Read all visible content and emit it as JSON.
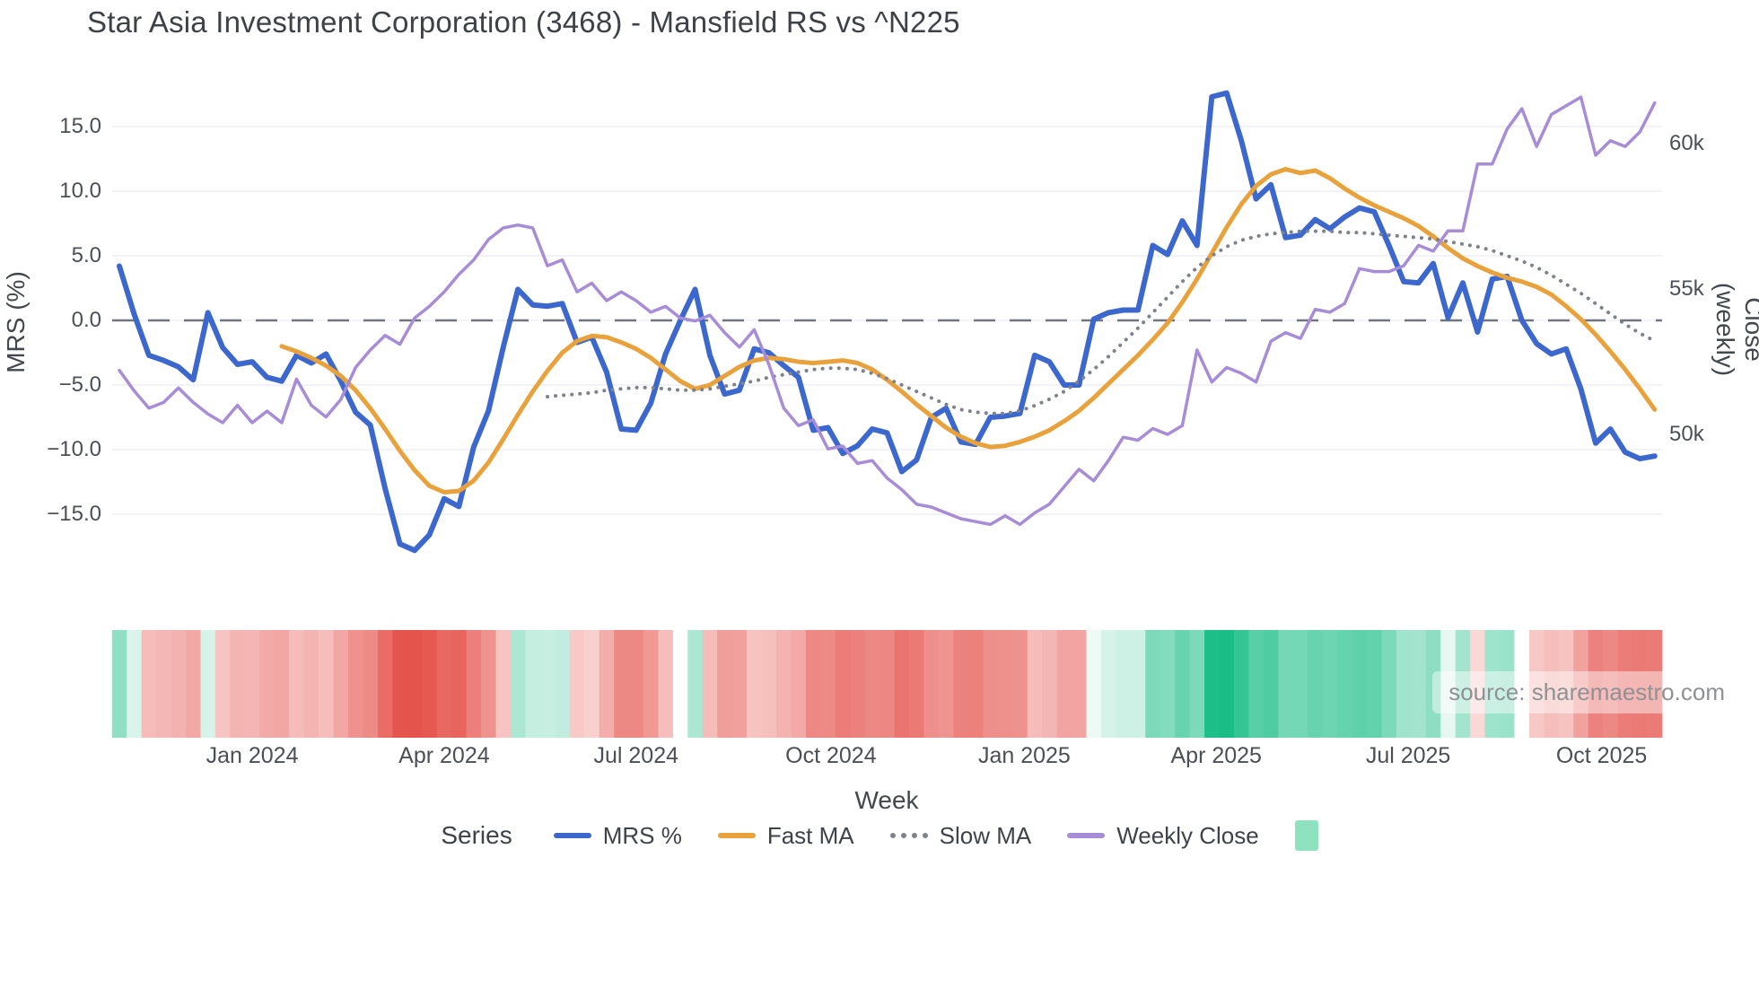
{
  "title": "Star Asia Investment Corporation (3468) - Mansfield RS vs ^N225",
  "source_watermark": "source: sharemaestro.com",
  "axes": {
    "left": {
      "title": "MRS (%)",
      "ticks": [
        "15.0",
        "10.0",
        "5.0",
        "0.0",
        "−5.0",
        "−10.0",
        "−15.0"
      ]
    },
    "right": {
      "title": "Close (weekly)",
      "ticks": [
        "60k",
        "55k",
        "50k"
      ]
    },
    "x": {
      "title": "Week",
      "ticks": [
        "Jan 2024",
        "Apr 2024",
        "Jul 2024",
        "Oct 2024",
        "Jan 2025",
        "Apr 2025",
        "Jul 2025",
        "Oct 2025"
      ]
    }
  },
  "legend": {
    "title": "Series",
    "items": [
      {
        "label": "MRS %",
        "color": "#3c68ce",
        "style": "solid"
      },
      {
        "label": "Fast MA",
        "color": "#e9a23b",
        "style": "solid"
      },
      {
        "label": "Slow MA",
        "color": "#7d828c",
        "style": "dotted"
      },
      {
        "label": "Weekly Close",
        "color": "#a78cd7",
        "style": "solid"
      }
    ],
    "heatmap_swatch_color": "#8fe2c0"
  },
  "colors": {
    "background": "#ffffff",
    "grid": "#ededf6",
    "zero_line": "#70757f",
    "title_text": "#3d4148",
    "tick_text": "#4b4f56"
  },
  "chart_data": {
    "type": "line",
    "title": "Star Asia Investment Corporation (3468) - Mansfield RS vs ^N225",
    "xlabel": "Week",
    "ylabel_left": "MRS (%)",
    "ylabel_right": "Close (weekly)",
    "x_unit": "week",
    "x_tick_labels": [
      "Jan 2024",
      "Apr 2024",
      "Jul 2024",
      "Oct 2024",
      "Jan 2025",
      "Apr 2025",
      "Jul 2025",
      "Oct 2025"
    ],
    "y_left_ticks": [
      15,
      10,
      5,
      0,
      -5,
      -10,
      -15
    ],
    "y_left_range": [
      -20.5,
      19.9
    ],
    "y_right_ticks_thousands": [
      60,
      55,
      50
    ],
    "grid": true,
    "legend_position": "bottom",
    "series": [
      {
        "name": "MRS %",
        "axis": "left",
        "color": "#3c68ce",
        "width": 6,
        "style": "solid",
        "values": [
          4.2,
          0.5,
          -2.7,
          -3.1,
          -3.6,
          -4.6,
          0.6,
          -2.1,
          -3.4,
          -3.2,
          -4.4,
          -4.7,
          -2.7,
          -3.3,
          -2.6,
          -4.7,
          -7.1,
          -8.1,
          -13.0,
          -17.3,
          -17.8,
          -16.6,
          -13.8,
          -14.4,
          -9.8,
          -7.0,
          -2.1,
          2.4,
          1.2,
          1.1,
          1.3,
          -1.7,
          -1.3,
          -4.0,
          -8.4,
          -8.5,
          -6.4,
          -2.6,
          0.0,
          2.4,
          -2.7,
          -5.7,
          -5.4,
          -2.2,
          -2.5,
          -3.5,
          -4.4,
          -8.5,
          -8.3,
          -10.3,
          -9.7,
          -8.4,
          -8.7,
          -11.7,
          -10.8,
          -7.5,
          -6.8,
          -9.4,
          -9.6,
          -7.5,
          -7.4,
          -7.2,
          -2.7,
          -3.2,
          -5.0,
          -5.0,
          0.1,
          0.6,
          0.8,
          0.8,
          5.8,
          5.1,
          7.7,
          5.8,
          17.3,
          17.6,
          13.9,
          9.4,
          10.5,
          6.4,
          6.6,
          7.8,
          7.1,
          8.0,
          8.7,
          8.4,
          5.8,
          3.0,
          2.9,
          4.4,
          0.2,
          2.9,
          -0.9,
          3.2,
          3.4,
          0.0,
          -1.8,
          -2.6,
          -2.2,
          -5.3,
          -9.5,
          -8.4,
          -10.2,
          -10.7,
          -10.5
        ]
      },
      {
        "name": "Fast MA",
        "axis": "left",
        "color": "#e9a23b",
        "width": 5,
        "style": "solid",
        "values": [
          null,
          null,
          null,
          null,
          null,
          null,
          null,
          null,
          null,
          null,
          null,
          -2.0,
          -2.4,
          -2.9,
          -3.5,
          -4.3,
          -5.4,
          -6.8,
          -8.4,
          -10.1,
          -11.6,
          -12.8,
          -13.3,
          -13.2,
          -12.4,
          -11.0,
          -9.2,
          -7.3,
          -5.5,
          -3.9,
          -2.5,
          -1.6,
          -1.2,
          -1.3,
          -1.7,
          -2.2,
          -2.9,
          -3.8,
          -4.7,
          -5.3,
          -5.0,
          -4.3,
          -3.6,
          -3.1,
          -2.9,
          -3.0,
          -3.2,
          -3.3,
          -3.2,
          -3.1,
          -3.3,
          -3.8,
          -4.6,
          -5.5,
          -6.5,
          -7.4,
          -8.3,
          -9.0,
          -9.5,
          -9.8,
          -9.7,
          -9.4,
          -9.0,
          -8.5,
          -7.8,
          -7.0,
          -6.0,
          -4.9,
          -3.8,
          -2.7,
          -1.5,
          -0.2,
          1.4,
          3.2,
          5.2,
          7.2,
          9.0,
          10.4,
          11.3,
          11.7,
          11.4,
          11.6,
          11.0,
          10.2,
          9.5,
          8.9,
          8.4,
          7.9,
          7.3,
          6.5,
          5.6,
          4.8,
          4.2,
          3.7,
          3.3,
          3.0,
          2.6,
          2.0,
          1.1,
          0.1,
          -1.1,
          -2.4,
          -3.8,
          -5.3,
          -6.9
        ]
      },
      {
        "name": "Slow MA",
        "axis": "left",
        "color": "#7d828c",
        "width": 4,
        "style": "dotted",
        "values": [
          null,
          null,
          null,
          null,
          null,
          null,
          null,
          null,
          null,
          null,
          null,
          null,
          null,
          null,
          null,
          null,
          null,
          null,
          null,
          null,
          null,
          null,
          null,
          null,
          null,
          null,
          null,
          null,
          null,
          -5.9,
          -5.8,
          -5.7,
          -5.6,
          -5.4,
          -5.3,
          -5.2,
          -5.2,
          -5.3,
          -5.4,
          -5.4,
          -5.3,
          -5.1,
          -4.9,
          -4.7,
          -4.4,
          -4.2,
          -4.0,
          -3.8,
          -3.7,
          -3.7,
          -3.8,
          -4.1,
          -4.5,
          -5.0,
          -5.5,
          -6.0,
          -6.5,
          -6.9,
          -7.1,
          -7.2,
          -7.2,
          -7.0,
          -6.6,
          -6.1,
          -5.5,
          -4.7,
          -3.8,
          -2.8,
          -1.7,
          -0.6,
          0.6,
          1.8,
          3.0,
          4.1,
          5.0,
          5.7,
          6.2,
          6.5,
          6.7,
          6.8,
          6.9,
          6.9,
          6.9,
          6.8,
          6.8,
          6.7,
          6.6,
          6.5,
          6.4,
          6.3,
          6.1,
          5.9,
          5.7,
          5.4,
          5.0,
          4.6,
          4.1,
          3.5,
          2.8,
          2.1,
          1.3,
          0.5,
          -0.3,
          -1.0,
          -1.6
        ]
      },
      {
        "name": "Weekly Close",
        "axis": "right",
        "color": "#a78cd7",
        "width": 3.5,
        "style": "solid",
        "unit": "thousand",
        "values": [
          52.2,
          51.5,
          50.9,
          51.1,
          51.6,
          51.1,
          50.7,
          50.4,
          51.0,
          50.4,
          50.8,
          50.4,
          51.9,
          51.0,
          50.6,
          51.2,
          52.3,
          52.9,
          53.4,
          53.1,
          54.0,
          54.4,
          54.9,
          55.5,
          56.0,
          56.7,
          57.1,
          57.2,
          57.1,
          55.8,
          56.0,
          54.9,
          55.2,
          54.6,
          54.9,
          54.6,
          54.2,
          54.4,
          54.0,
          53.9,
          54.1,
          53.5,
          53.0,
          53.6,
          52.4,
          50.9,
          50.3,
          50.5,
          49.5,
          49.6,
          49.0,
          49.1,
          48.5,
          48.1,
          47.6,
          47.5,
          47.3,
          47.1,
          47.0,
          46.9,
          47.2,
          46.9,
          47.3,
          47.6,
          48.2,
          48.8,
          48.4,
          49.1,
          49.9,
          49.8,
          50.2,
          50.0,
          50.3,
          52.9,
          51.8,
          52.3,
          52.1,
          51.8,
          53.2,
          53.5,
          53.3,
          54.3,
          54.2,
          54.5,
          55.7,
          55.6,
          55.6,
          55.8,
          56.5,
          56.3,
          57.0,
          57.0,
          59.3,
          59.3,
          60.5,
          61.2,
          59.9,
          61.0,
          61.3,
          61.6,
          59.6,
          60.1,
          59.9,
          60.4,
          61.4
        ]
      }
    ],
    "heatmap": {
      "source_series": "MRS %",
      "positive_color": "#1abd86",
      "negative_color": "#e5534d",
      "scale_max": 17.8
    }
  }
}
